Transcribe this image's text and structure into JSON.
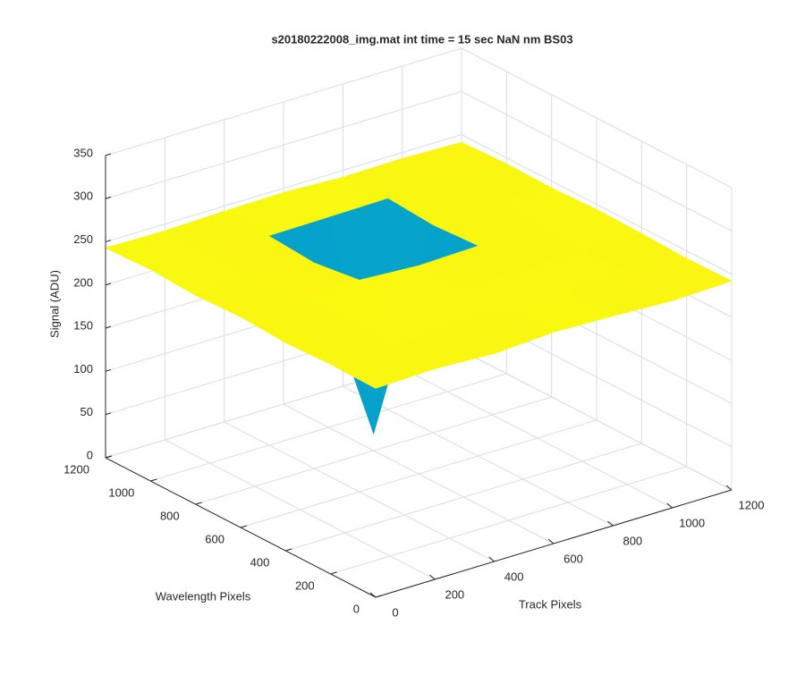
{
  "chart_data": {
    "type": "surface",
    "title": "s20180222008_img.mat int time = 15 sec   NaN nm BS03",
    "xlabel": "Track Pixels",
    "ylabel": "Wavelength Pixels",
    "zlabel": "Signal (ADU)",
    "x": [
      0,
      200,
      400,
      600,
      800,
      1000,
      1200
    ],
    "y": [
      0,
      200,
      400,
      600,
      800,
      1000,
      1200
    ],
    "z": [
      [
        242,
        244,
        241,
        245,
        243,
        240,
        242
      ],
      [
        243,
        241,
        244,
        242,
        245,
        243,
        241
      ],
      [
        241,
        245,
        243,
        244,
        242,
        244,
        243
      ],
      [
        244,
        242,
        245,
        241,
        243,
        242,
        244
      ],
      [
        242,
        243,
        238,
        20,
        240,
        245,
        242
      ],
      [
        245,
        244,
        242,
        243,
        244,
        241,
        243
      ],
      [
        243,
        242,
        244,
        245,
        242,
        243,
        241
      ]
    ],
    "xlim": [
      0,
      1200
    ],
    "ylim": [
      0,
      1200
    ],
    "zlim": [
      0,
      350
    ],
    "xticks": [
      0,
      200,
      400,
      600,
      800,
      1000,
      1200
    ],
    "yticks": [
      0,
      200,
      400,
      600,
      800,
      1000,
      1200
    ],
    "zticks": [
      0,
      50,
      100,
      150,
      200,
      250,
      300,
      350
    ],
    "grid": true
  }
}
